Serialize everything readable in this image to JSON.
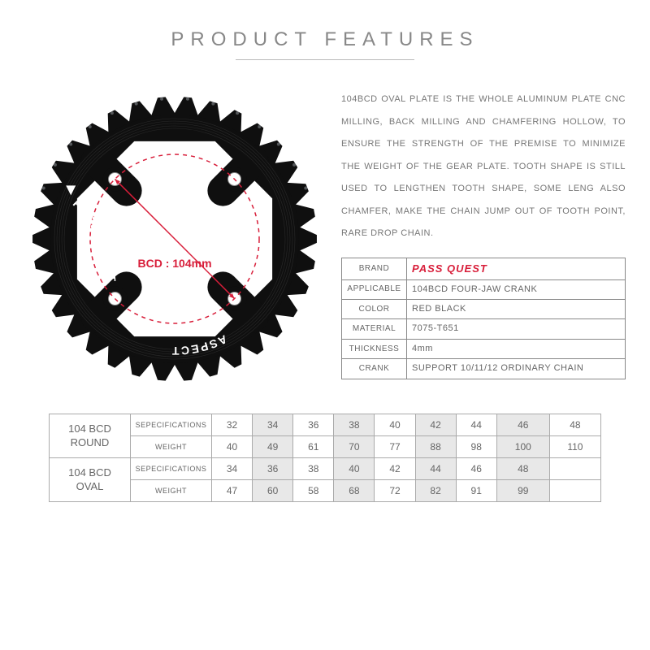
{
  "header": {
    "title": "PRODUCT FEATURES"
  },
  "diagram": {
    "bcd_label": "BCD : 104mm",
    "brand_text_1": "PASS QUEST",
    "brand_text_2": "ASPECT",
    "colors": {
      "chainring_fill": "#0f0f0f",
      "bcd_circle": "#d81e3a",
      "label": "#d81e3a",
      "tooth_light": "#9aa0a6"
    },
    "num_teeth": 34,
    "outer_r": 175,
    "tooth_len": 18,
    "ring_r": 155,
    "cutout_inner_r": 86,
    "cutout_outer_r": 130,
    "bcd_r": 104,
    "bolt_r": 104,
    "bolt_angles_deg": [
      45,
      135,
      225,
      315
    ]
  },
  "description": "104BCD OVAL PLATE IS THE WHOLE ALUMINUM PLATE CNC MILLING, BACK MILLING AND CHAMFERING HOLLOW, TO ENSURE THE STRENGTH OF THE PREMISE TO MINIMIZE THE WEIGHT OF THE GEAR PLATE. TOOTH SHAPE IS STILL USED TO LENGTHEN TOOTH SHAPE, SOME LENG ALSO CHAMFER, MAKE THE CHAIN JUMP OUT OF TOOTH POINT, RARE DROP CHAIN.",
  "spec_table": {
    "rows": [
      {
        "key": "BRAND",
        "val": "PASS QUEST",
        "brand": true
      },
      {
        "key": "APPLICABLE",
        "val": "104BCD FOUR-JAW CRANK"
      },
      {
        "key": "COLOR",
        "val": "RED BLACK"
      },
      {
        "key": "MATERIAL",
        "val": "7075-T651"
      },
      {
        "key": "THICKNESS",
        "val": "4mm"
      },
      {
        "key": "CRANK",
        "val": "SUPPORT 10/11/12 ORDINARY CHAIN"
      }
    ]
  },
  "size_tables": {
    "alt_bg": "#e8e8e8",
    "groups": [
      {
        "group_label": "104 BCD ROUND",
        "rows": [
          {
            "label": "SEPECIFICATIONS",
            "cells": [
              "32",
              "34",
              "36",
              "38",
              "40",
              "42",
              "44",
              "46",
              "48"
            ]
          },
          {
            "label": "WEIGHT",
            "cells": [
              "40",
              "49",
              "61",
              "70",
              "77",
              "88",
              "98",
              "100",
              "110"
            ]
          }
        ]
      },
      {
        "group_label": "104 BCD OVAL",
        "rows": [
          {
            "label": "SEPECIFICATIONS",
            "cells": [
              "34",
              "36",
              "38",
              "40",
              "42",
              "44",
              "46",
              "48",
              ""
            ]
          },
          {
            "label": "WEIGHT",
            "cells": [
              "47",
              "60",
              "58",
              "68",
              "72",
              "82",
              "91",
              "99",
              ""
            ]
          }
        ]
      }
    ]
  }
}
